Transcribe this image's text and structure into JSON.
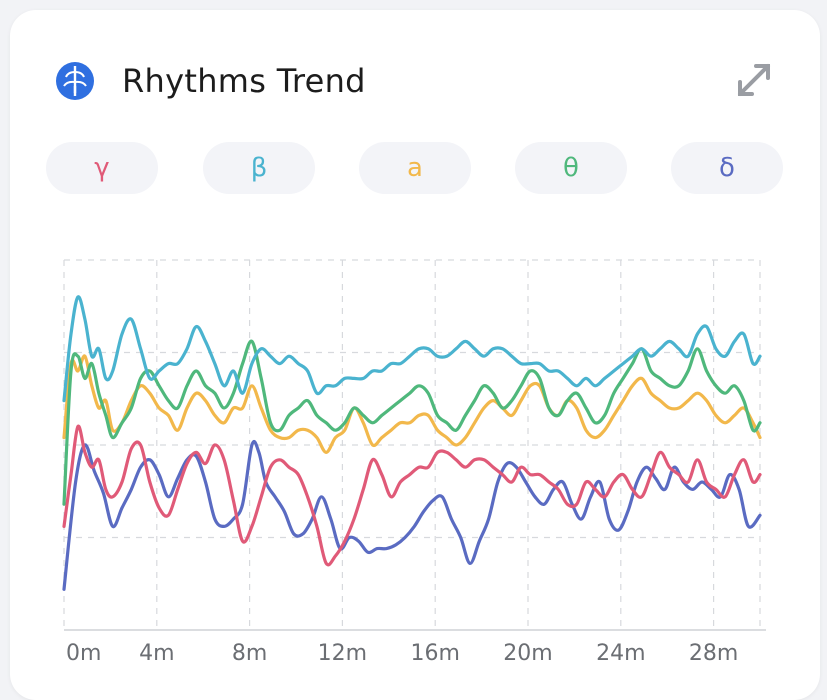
{
  "header": {
    "title": "Rhythms Trend",
    "icon": "brain-icon",
    "expand_icon": "expand-icon"
  },
  "tabs": [
    {
      "label": "γ",
      "color": "#e05a78"
    },
    {
      "label": "β",
      "color": "#4ab3cf"
    },
    {
      "label": "a",
      "color": "#f2b84b"
    },
    {
      "label": "θ",
      "color": "#4fb87c"
    },
    {
      "label": "δ",
      "color": "#5a6bc2"
    }
  ],
  "chart_data": {
    "type": "line",
    "x_ticks": [
      "0m",
      "4m",
      "8m",
      "12m",
      "16m",
      "20m",
      "24m",
      "28m"
    ],
    "xlim": [
      0,
      30
    ],
    "ylim": [
      0,
      100
    ],
    "grid": true,
    "legend": "none",
    "series": [
      {
        "color": "#5a6bc2",
        "x": [
          0,
          0.5,
          0.9,
          1.3,
          1.7,
          2.1,
          2.5,
          2.9,
          3.3,
          3.7,
          4.1,
          4.5,
          4.9,
          5.3,
          5.7,
          6.1,
          6.5,
          6.9,
          7.3,
          7.7,
          8.1,
          8.4,
          8.7,
          9.1,
          9.5,
          9.9,
          10.3,
          10.7,
          11.1,
          11.5,
          11.9,
          12.3,
          12.7,
          13.1,
          13.5,
          13.9,
          14.3,
          14.7,
          15.1,
          15.5,
          15.9,
          16.3,
          16.7,
          17.1,
          17.5,
          17.9,
          18.3,
          18.7,
          19.1,
          19.5,
          19.9,
          20.3,
          20.7,
          21.1,
          21.5,
          21.9,
          22.3,
          22.7,
          23.1,
          23.5,
          23.9,
          24.3,
          24.7,
          25.1,
          25.5,
          25.9,
          26.3,
          26.7,
          27.1,
          27.5,
          27.9,
          28.3,
          28.7,
          29.1,
          29.5,
          30
        ],
        "values": [
          11,
          40,
          50,
          43,
          37,
          28,
          33,
          38,
          44,
          46,
          42,
          36,
          41,
          46,
          47,
          40,
          30,
          28,
          30,
          34,
          50,
          48,
          40,
          36,
          32,
          26,
          26,
          30,
          36,
          30,
          22,
          25,
          24,
          21,
          22,
          22,
          23,
          25,
          28,
          32,
          35,
          36,
          30,
          25,
          18,
          24,
          30,
          40,
          45,
          44,
          40,
          36,
          34,
          38,
          40,
          34,
          30,
          36,
          40,
          30,
          27,
          32,
          40,
          44,
          41,
          38,
          44,
          40,
          38,
          40,
          38,
          36,
          42,
          38,
          28,
          31
        ]
      },
      {
        "color": "#e05a78",
        "x": [
          0,
          0.3,
          0.6,
          0.9,
          1.2,
          1.5,
          1.8,
          2.1,
          2.5,
          2.9,
          3.3,
          3.7,
          4.1,
          4.5,
          4.9,
          5.3,
          5.7,
          6.1,
          6.5,
          6.9,
          7.3,
          7.7,
          8.1,
          8.5,
          8.9,
          9.3,
          9.7,
          10.1,
          10.5,
          10.9,
          11.3,
          11.7,
          12.1,
          12.5,
          12.9,
          13.3,
          13.7,
          14.1,
          14.5,
          14.9,
          15.3,
          15.7,
          16.1,
          16.5,
          16.9,
          17.3,
          17.7,
          18.1,
          18.5,
          18.9,
          19.3,
          19.7,
          20.1,
          20.5,
          20.9,
          21.3,
          21.7,
          22.1,
          22.5,
          22.9,
          23.3,
          23.7,
          24.1,
          24.5,
          24.9,
          25.3,
          25.7,
          26.1,
          26.5,
          26.9,
          27.3,
          27.7,
          28.1,
          28.5,
          28.9,
          29.3,
          29.7,
          30
        ],
        "values": [
          28,
          42,
          55,
          48,
          44,
          46,
          38,
          36,
          40,
          49,
          50,
          40,
          33,
          31,
          38,
          45,
          48,
          45,
          50,
          46,
          35,
          24,
          28,
          36,
          44,
          46,
          44,
          42,
          36,
          28,
          18,
          20,
          24,
          30,
          38,
          46,
          42,
          36,
          40,
          42,
          44,
          44,
          48,
          48,
          46,
          44,
          46,
          46,
          44,
          42,
          40,
          44,
          42,
          42,
          40,
          38,
          34,
          34,
          40,
          38,
          36,
          40,
          42,
          38,
          36,
          42,
          48,
          44,
          42,
          40,
          46,
          40,
          38,
          36,
          42,
          46,
          40,
          42
        ]
      },
      {
        "color": "#f2b84b",
        "x": [
          0,
          0.3,
          0.6,
          0.9,
          1.2,
          1.5,
          1.8,
          2.1,
          2.5,
          2.9,
          3.3,
          3.7,
          4.1,
          4.5,
          4.9,
          5.3,
          5.7,
          6.1,
          6.5,
          6.9,
          7.3,
          7.7,
          8.1,
          8.5,
          8.9,
          9.3,
          9.7,
          10.1,
          10.5,
          10.9,
          11.3,
          11.7,
          12.1,
          12.5,
          12.9,
          13.3,
          13.7,
          14.1,
          14.5,
          14.9,
          15.3,
          15.7,
          16.1,
          16.5,
          16.9,
          17.3,
          17.7,
          18.1,
          18.5,
          18.9,
          19.3,
          19.7,
          20.1,
          20.5,
          20.9,
          21.3,
          21.7,
          22.1,
          22.5,
          22.9,
          23.3,
          23.7,
          24.1,
          24.5,
          24.9,
          25.3,
          25.7,
          26.1,
          26.5,
          26.9,
          27.3,
          27.7,
          28.1,
          28.5,
          28.9,
          29.3,
          29.7,
          30
        ],
        "values": [
          52,
          72,
          70,
          74,
          66,
          60,
          62,
          54,
          56,
          62,
          66,
          64,
          60,
          58,
          54,
          60,
          64,
          62,
          58,
          56,
          60,
          60,
          66,
          60,
          54,
          52,
          52,
          54,
          54,
          52,
          48,
          52,
          54,
          60,
          56,
          50,
          52,
          54,
          56,
          56,
          58,
          58,
          54,
          52,
          50,
          52,
          56,
          60,
          62,
          60,
          58,
          62,
          66,
          66,
          60,
          58,
          62,
          60,
          54,
          52,
          54,
          58,
          62,
          66,
          68,
          64,
          62,
          60,
          60,
          62,
          64,
          62,
          58,
          56,
          58,
          60,
          56,
          52
        ]
      },
      {
        "color": "#4fb87c",
        "x": [
          0,
          0.3,
          0.6,
          0.9,
          1.2,
          1.5,
          1.8,
          2.1,
          2.5,
          2.9,
          3.3,
          3.7,
          4.1,
          4.5,
          4.9,
          5.3,
          5.7,
          6.1,
          6.5,
          6.9,
          7.3,
          7.7,
          8.1,
          8.5,
          8.9,
          9.3,
          9.7,
          10.1,
          10.5,
          10.9,
          11.3,
          11.7,
          12.1,
          12.5,
          12.9,
          13.3,
          13.7,
          14.1,
          14.5,
          14.9,
          15.3,
          15.7,
          16.1,
          16.5,
          16.9,
          17.3,
          17.7,
          18.1,
          18.5,
          18.9,
          19.3,
          19.7,
          20.1,
          20.5,
          20.9,
          21.3,
          21.7,
          22.1,
          22.5,
          22.9,
          23.3,
          23.7,
          24.1,
          24.5,
          24.9,
          25.3,
          25.7,
          26.1,
          26.5,
          26.9,
          27.3,
          27.7,
          28.1,
          28.5,
          28.9,
          29.3,
          29.7,
          30
        ],
        "values": [
          34,
          70,
          74,
          68,
          72,
          64,
          58,
          52,
          56,
          60,
          68,
          70,
          66,
          62,
          60,
          66,
          70,
          66,
          64,
          60,
          64,
          72,
          78,
          68,
          56,
          54,
          58,
          60,
          62,
          58,
          56,
          54,
          56,
          60,
          58,
          56,
          58,
          60,
          62,
          64,
          66,
          64,
          58,
          56,
          54,
          58,
          62,
          66,
          64,
          60,
          62,
          66,
          70,
          68,
          60,
          58,
          62,
          64,
          60,
          56,
          58,
          64,
          68,
          72,
          76,
          70,
          68,
          66,
          66,
          70,
          76,
          70,
          66,
          64,
          66,
          62,
          54,
          56
        ]
      },
      {
        "color": "#4ab3cf",
        "x": [
          0,
          0.3,
          0.6,
          0.9,
          1.2,
          1.5,
          1.8,
          2.1,
          2.5,
          2.9,
          3.3,
          3.7,
          4.1,
          4.5,
          4.9,
          5.3,
          5.7,
          6.1,
          6.5,
          6.9,
          7.3,
          7.7,
          8.1,
          8.5,
          8.9,
          9.3,
          9.7,
          10.1,
          10.5,
          10.9,
          11.3,
          11.7,
          12.1,
          12.5,
          12.9,
          13.3,
          13.7,
          14.1,
          14.5,
          14.9,
          15.3,
          15.7,
          16.1,
          16.5,
          16.9,
          17.3,
          17.7,
          18.1,
          18.5,
          18.9,
          19.3,
          19.7,
          20.1,
          20.5,
          20.9,
          21.3,
          21.7,
          22.1,
          22.5,
          22.9,
          23.3,
          23.7,
          24.1,
          24.5,
          24.9,
          25.3,
          25.7,
          26.1,
          26.5,
          26.9,
          27.3,
          27.7,
          28.1,
          28.5,
          28.9,
          29.3,
          29.7,
          30
        ],
        "values": [
          62,
          80,
          90,
          84,
          74,
          76,
          68,
          70,
          80,
          84,
          76,
          68,
          70,
          72,
          72,
          76,
          82,
          78,
          72,
          66,
          70,
          64,
          72,
          76,
          74,
          72,
          74,
          72,
          70,
          64,
          66,
          66,
          68,
          68,
          68,
          70,
          70,
          72,
          72,
          74,
          76,
          76,
          74,
          74,
          76,
          78,
          76,
          74,
          76,
          76,
          74,
          72,
          72,
          72,
          70,
          70,
          68,
          66,
          68,
          66,
          68,
          70,
          72,
          74,
          76,
          74,
          76,
          78,
          76,
          74,
          80,
          82,
          76,
          74,
          78,
          80,
          72,
          74
        ]
      }
    ]
  }
}
